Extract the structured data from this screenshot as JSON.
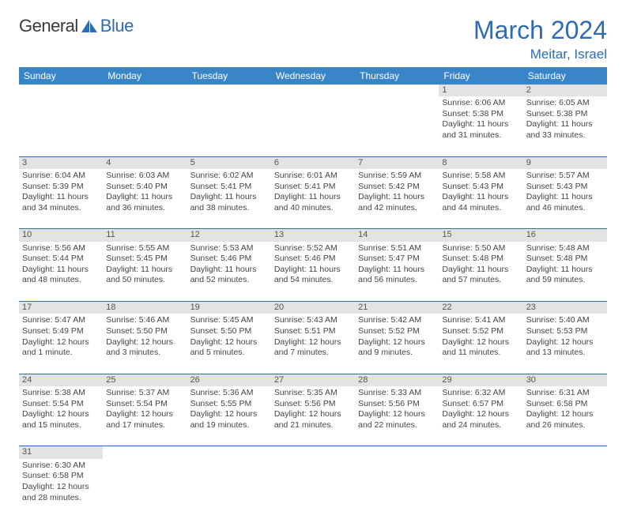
{
  "brand": {
    "name1": "General",
    "name2": "Blue"
  },
  "title": "March 2024",
  "location": "Meitar, Israel",
  "colors": {
    "header_bg": "#3a85c8",
    "accent": "#2f6bb0",
    "daynum_bg": "#e3e3e3",
    "text": "#444444",
    "bg": "#ffffff"
  },
  "typography": {
    "title_fontsize": 32,
    "location_fontsize": 17,
    "th_fontsize": 12,
    "cell_fontsize": 10.5
  },
  "day_headers": [
    "Sunday",
    "Monday",
    "Tuesday",
    "Wednesday",
    "Thursday",
    "Friday",
    "Saturday"
  ],
  "weeks": [
    [
      null,
      null,
      null,
      null,
      null,
      {
        "d": "1",
        "sr": "Sunrise: 6:06 AM",
        "ss": "Sunset: 5:38 PM",
        "dl1": "Daylight: 11 hours",
        "dl2": "and 31 minutes."
      },
      {
        "d": "2",
        "sr": "Sunrise: 6:05 AM",
        "ss": "Sunset: 5:38 PM",
        "dl1": "Daylight: 11 hours",
        "dl2": "and 33 minutes."
      }
    ],
    [
      {
        "d": "3",
        "sr": "Sunrise: 6:04 AM",
        "ss": "Sunset: 5:39 PM",
        "dl1": "Daylight: 11 hours",
        "dl2": "and 34 minutes."
      },
      {
        "d": "4",
        "sr": "Sunrise: 6:03 AM",
        "ss": "Sunset: 5:40 PM",
        "dl1": "Daylight: 11 hours",
        "dl2": "and 36 minutes."
      },
      {
        "d": "5",
        "sr": "Sunrise: 6:02 AM",
        "ss": "Sunset: 5:41 PM",
        "dl1": "Daylight: 11 hours",
        "dl2": "and 38 minutes."
      },
      {
        "d": "6",
        "sr": "Sunrise: 6:01 AM",
        "ss": "Sunset: 5:41 PM",
        "dl1": "Daylight: 11 hours",
        "dl2": "and 40 minutes."
      },
      {
        "d": "7",
        "sr": "Sunrise: 5:59 AM",
        "ss": "Sunset: 5:42 PM",
        "dl1": "Daylight: 11 hours",
        "dl2": "and 42 minutes."
      },
      {
        "d": "8",
        "sr": "Sunrise: 5:58 AM",
        "ss": "Sunset: 5:43 PM",
        "dl1": "Daylight: 11 hours",
        "dl2": "and 44 minutes."
      },
      {
        "d": "9",
        "sr": "Sunrise: 5:57 AM",
        "ss": "Sunset: 5:43 PM",
        "dl1": "Daylight: 11 hours",
        "dl2": "and 46 minutes."
      }
    ],
    [
      {
        "d": "10",
        "sr": "Sunrise: 5:56 AM",
        "ss": "Sunset: 5:44 PM",
        "dl1": "Daylight: 11 hours",
        "dl2": "and 48 minutes."
      },
      {
        "d": "11",
        "sr": "Sunrise: 5:55 AM",
        "ss": "Sunset: 5:45 PM",
        "dl1": "Daylight: 11 hours",
        "dl2": "and 50 minutes."
      },
      {
        "d": "12",
        "sr": "Sunrise: 5:53 AM",
        "ss": "Sunset: 5:46 PM",
        "dl1": "Daylight: 11 hours",
        "dl2": "and 52 minutes."
      },
      {
        "d": "13",
        "sr": "Sunrise: 5:52 AM",
        "ss": "Sunset: 5:46 PM",
        "dl1": "Daylight: 11 hours",
        "dl2": "and 54 minutes."
      },
      {
        "d": "14",
        "sr": "Sunrise: 5:51 AM",
        "ss": "Sunset: 5:47 PM",
        "dl1": "Daylight: 11 hours",
        "dl2": "and 56 minutes."
      },
      {
        "d": "15",
        "sr": "Sunrise: 5:50 AM",
        "ss": "Sunset: 5:48 PM",
        "dl1": "Daylight: 11 hours",
        "dl2": "and 57 minutes."
      },
      {
        "d": "16",
        "sr": "Sunrise: 5:48 AM",
        "ss": "Sunset: 5:48 PM",
        "dl1": "Daylight: 11 hours",
        "dl2": "and 59 minutes."
      }
    ],
    [
      {
        "d": "17",
        "sr": "Sunrise: 5:47 AM",
        "ss": "Sunset: 5:49 PM",
        "dl1": "Daylight: 12 hours",
        "dl2": "and 1 minute."
      },
      {
        "d": "18",
        "sr": "Sunrise: 5:46 AM",
        "ss": "Sunset: 5:50 PM",
        "dl1": "Daylight: 12 hours",
        "dl2": "and 3 minutes."
      },
      {
        "d": "19",
        "sr": "Sunrise: 5:45 AM",
        "ss": "Sunset: 5:50 PM",
        "dl1": "Daylight: 12 hours",
        "dl2": "and 5 minutes."
      },
      {
        "d": "20",
        "sr": "Sunrise: 5:43 AM",
        "ss": "Sunset: 5:51 PM",
        "dl1": "Daylight: 12 hours",
        "dl2": "and 7 minutes."
      },
      {
        "d": "21",
        "sr": "Sunrise: 5:42 AM",
        "ss": "Sunset: 5:52 PM",
        "dl1": "Daylight: 12 hours",
        "dl2": "and 9 minutes."
      },
      {
        "d": "22",
        "sr": "Sunrise: 5:41 AM",
        "ss": "Sunset: 5:52 PM",
        "dl1": "Daylight: 12 hours",
        "dl2": "and 11 minutes."
      },
      {
        "d": "23",
        "sr": "Sunrise: 5:40 AM",
        "ss": "Sunset: 5:53 PM",
        "dl1": "Daylight: 12 hours",
        "dl2": "and 13 minutes."
      }
    ],
    [
      {
        "d": "24",
        "sr": "Sunrise: 5:38 AM",
        "ss": "Sunset: 5:54 PM",
        "dl1": "Daylight: 12 hours",
        "dl2": "and 15 minutes."
      },
      {
        "d": "25",
        "sr": "Sunrise: 5:37 AM",
        "ss": "Sunset: 5:54 PM",
        "dl1": "Daylight: 12 hours",
        "dl2": "and 17 minutes."
      },
      {
        "d": "26",
        "sr": "Sunrise: 5:36 AM",
        "ss": "Sunset: 5:55 PM",
        "dl1": "Daylight: 12 hours",
        "dl2": "and 19 minutes."
      },
      {
        "d": "27",
        "sr": "Sunrise: 5:35 AM",
        "ss": "Sunset: 5:56 PM",
        "dl1": "Daylight: 12 hours",
        "dl2": "and 21 minutes."
      },
      {
        "d": "28",
        "sr": "Sunrise: 5:33 AM",
        "ss": "Sunset: 5:56 PM",
        "dl1": "Daylight: 12 hours",
        "dl2": "and 22 minutes."
      },
      {
        "d": "29",
        "sr": "Sunrise: 6:32 AM",
        "ss": "Sunset: 6:57 PM",
        "dl1": "Daylight: 12 hours",
        "dl2": "and 24 minutes."
      },
      {
        "d": "30",
        "sr": "Sunrise: 6:31 AM",
        "ss": "Sunset: 6:58 PM",
        "dl1": "Daylight: 12 hours",
        "dl2": "and 26 minutes."
      }
    ],
    [
      {
        "d": "31",
        "sr": "Sunrise: 6:30 AM",
        "ss": "Sunset: 6:58 PM",
        "dl1": "Daylight: 12 hours",
        "dl2": "and 28 minutes."
      },
      null,
      null,
      null,
      null,
      null,
      null
    ]
  ]
}
